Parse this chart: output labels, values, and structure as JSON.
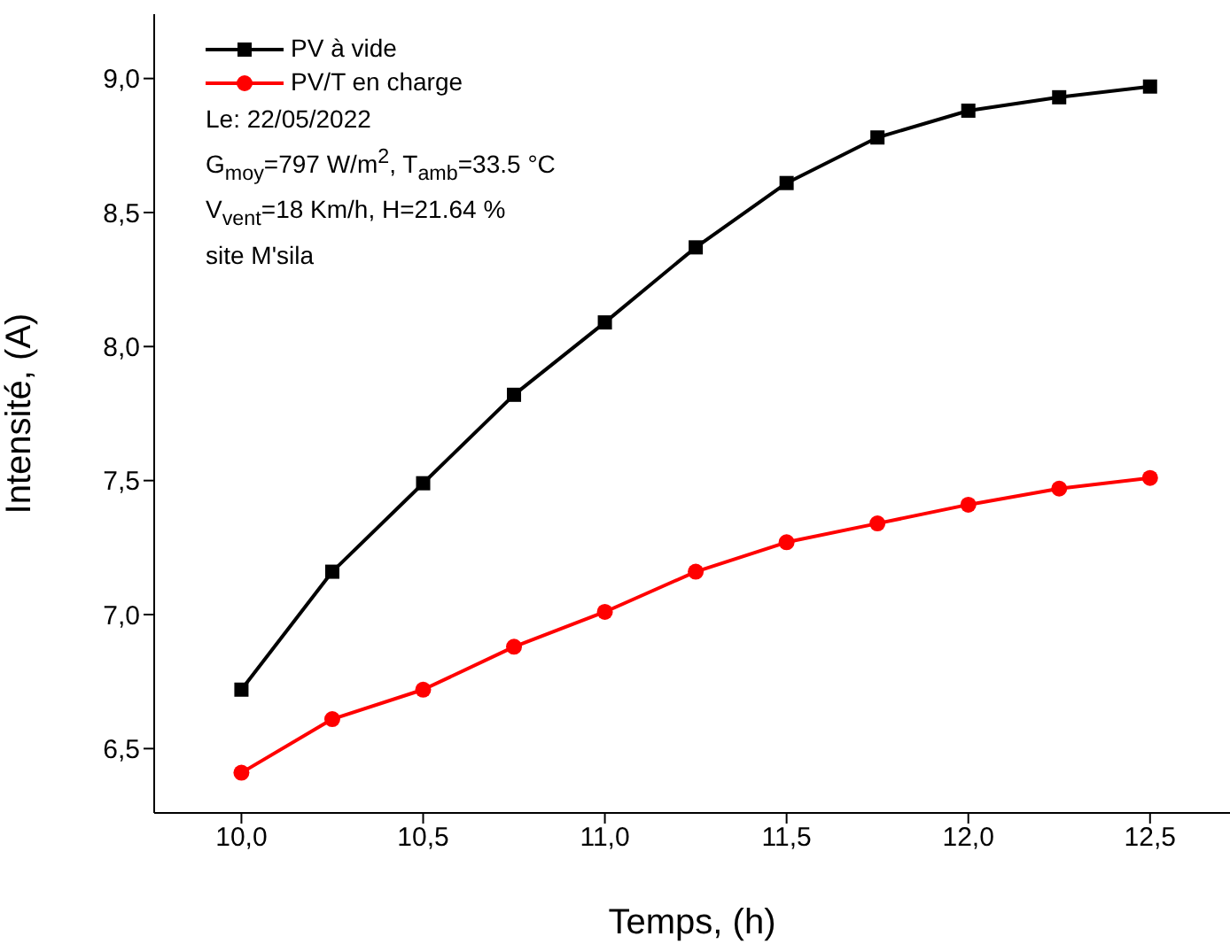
{
  "chart_data": {
    "type": "line",
    "xlabel": "Temps, (h)",
    "ylabel": "Intensité, (A)",
    "x": [
      10.0,
      10.25,
      10.5,
      10.75,
      11.0,
      11.25,
      11.5,
      11.75,
      12.0,
      12.25,
      12.5
    ],
    "series": [
      {
        "name": "PV à vide",
        "color": "#000000",
        "marker": "square",
        "values": [
          6.72,
          7.16,
          7.49,
          7.82,
          8.09,
          8.37,
          8.61,
          8.78,
          8.88,
          8.93,
          8.97
        ]
      },
      {
        "name": "PV/T en charge",
        "color": "#ff0000",
        "marker": "circle",
        "values": [
          6.41,
          6.61,
          6.72,
          6.88,
          7.01,
          7.16,
          7.27,
          7.34,
          7.41,
          7.47,
          7.51
        ]
      }
    ],
    "xlim": [
      9.76,
      12.72
    ],
    "xticks": [
      {
        "value": 10,
        "label": "10,0"
      },
      {
        "value": 10.5,
        "label": "10,5"
      },
      {
        "value": 11,
        "label": "11,0"
      },
      {
        "value": 11.5,
        "label": "11,5"
      },
      {
        "value": 12,
        "label": "12,0"
      },
      {
        "value": 12.5,
        "label": "12,5"
      }
    ],
    "ylim": [
      6.26,
      9.24
    ],
    "yticks": [
      {
        "value": 6.5,
        "label": "6,5"
      },
      {
        "value": 7,
        "label": "7,0"
      },
      {
        "value": 7.5,
        "label": "7,5"
      },
      {
        "value": 8,
        "label": "8,0"
      },
      {
        "value": 8.5,
        "label": "8,5"
      },
      {
        "value": 9,
        "label": "9,0"
      }
    ],
    "annotations": [
      "Le: 22/05/2022",
      "G$_{moy}$=797 W/m$^{2}$, T$_{amb}$=33.5 °C",
      "V$_{vent}$=18 Km/h, H=21.64 %",
      "site M'sila"
    ],
    "legend": "top left",
    "line_style": "solid"
  }
}
